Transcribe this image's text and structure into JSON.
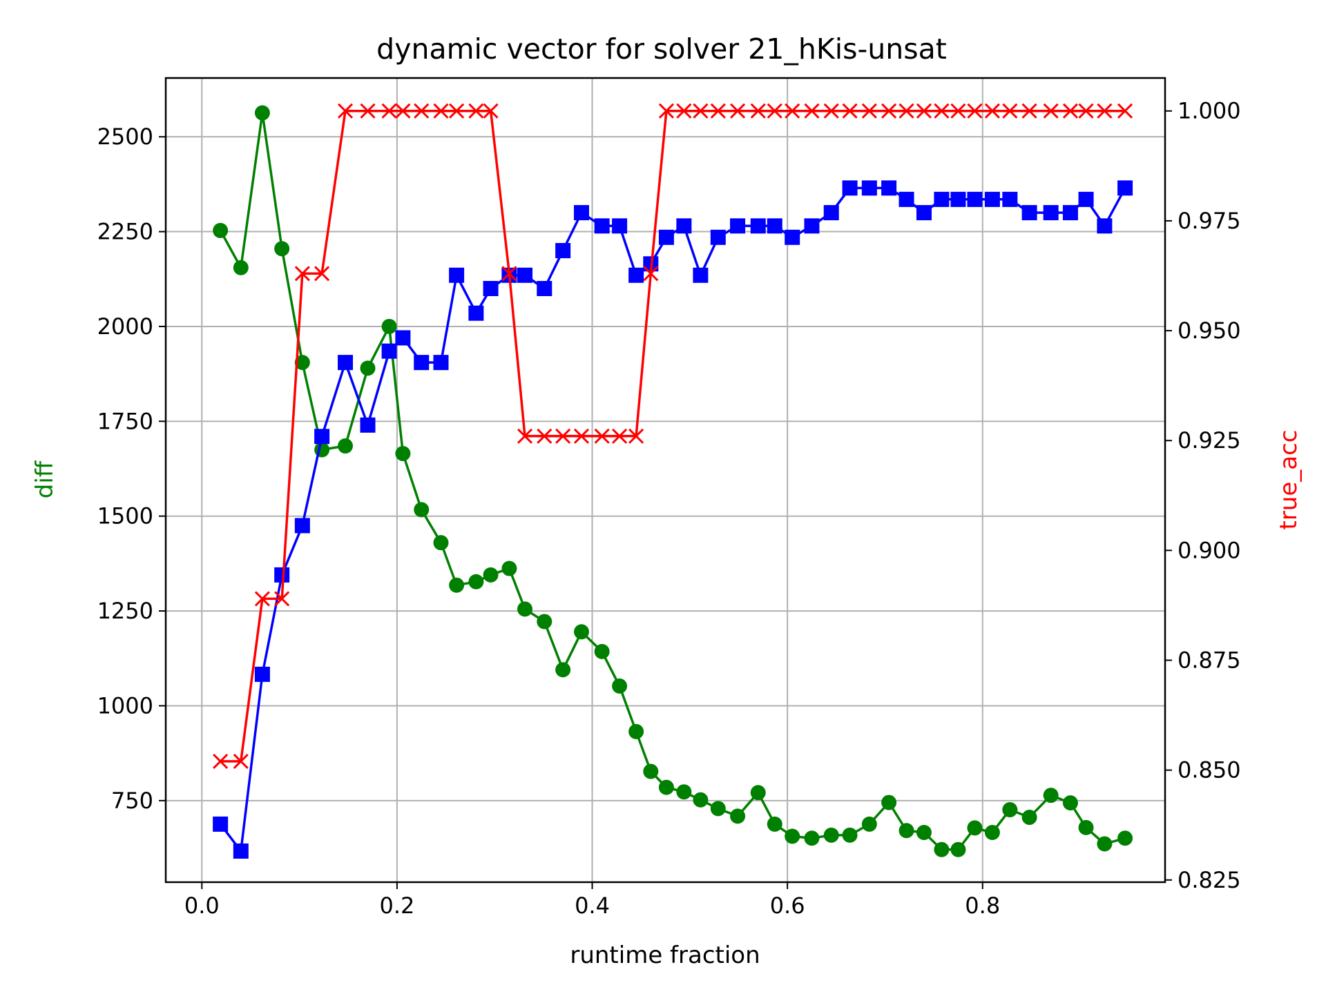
{
  "chart_data": {
    "type": "line",
    "title": "dynamic vector for solver 21_hKis-unsat",
    "xlabel": "runtime fraction",
    "ylabel": "diff",
    "ylabel_right": "true_acc",
    "xlim": [
      -0.037,
      0.987
    ],
    "ylim": [
      535,
      2655
    ],
    "ylim_right": [
      0.8245,
      1.0075
    ],
    "xticks": [
      0.0,
      0.2,
      0.4,
      0.6,
      0.8
    ],
    "xtick_labels": [
      "0.0",
      "0.2",
      "0.4",
      "0.6",
      "0.8"
    ],
    "yticks": [
      750,
      1000,
      1250,
      1500,
      1750,
      2000,
      2250,
      2500
    ],
    "ytick_labels": [
      "750",
      "1000",
      "1250",
      "1500",
      "1750",
      "2000",
      "2250",
      "2500"
    ],
    "yticks_right": [
      0.825,
      0.85,
      0.875,
      0.9,
      0.925,
      0.95,
      0.975,
      1.0
    ],
    "ytick_labels_right": [
      "0.825",
      "0.850",
      "0.875",
      "0.900",
      "0.925",
      "0.950",
      "0.975",
      "1.000"
    ],
    "grid": true,
    "x": [
      0.019,
      0.04,
      0.062,
      0.082,
      0.103,
      0.123,
      0.147,
      0.17,
      0.192,
      0.206,
      0.225,
      0.245,
      0.261,
      0.281,
      0.296,
      0.315,
      0.331,
      0.351,
      0.37,
      0.389,
      0.41,
      0.428,
      0.445,
      0.46,
      0.476,
      0.494,
      0.511,
      0.529,
      0.549,
      0.57,
      0.587,
      0.605,
      0.625,
      0.645,
      0.664,
      0.684,
      0.704,
      0.722,
      0.74,
      0.758,
      0.775,
      0.792,
      0.81,
      0.828,
      0.848,
      0.87,
      0.89,
      0.906,
      0.925,
      0.946
    ],
    "series": [
      {
        "name": "diff",
        "axis": "left",
        "color": "#008000",
        "marker": "circle",
        "values": [
          2253,
          2155,
          2563,
          2205,
          1905,
          1675,
          1685,
          1890,
          2000,
          1665,
          1517,
          1430,
          1318,
          1327,
          1345,
          1362,
          1255,
          1222,
          1095,
          1195,
          1143,
          1052,
          932,
          827,
          785,
          773,
          752,
          729,
          709,
          771,
          688,
          656,
          651,
          659,
          659,
          688,
          745,
          671,
          666,
          621,
          621,
          678,
          666,
          726,
          706,
          764,
          744,
          679,
          636,
          651
        ]
      },
      {
        "name": "blue",
        "axis": "left",
        "color": "#0000ff",
        "marker": "square",
        "values": [
          688,
          617,
          1083,
          1345,
          1475,
          1710,
          1905,
          1740,
          1935,
          1970,
          1905,
          1905,
          2135,
          2035,
          2100,
          2135,
          2135,
          2100,
          2200,
          2300,
          2265,
          2265,
          2135,
          2165,
          2235,
          2265,
          2135,
          2235,
          2265,
          2265,
          2265,
          2235,
          2265,
          2300,
          2365,
          2365,
          2365,
          2335,
          2300,
          2335,
          2335,
          2335,
          2335,
          2335,
          2300,
          2300,
          2300,
          2335,
          2265,
          2365
        ]
      },
      {
        "name": "true_acc",
        "axis": "right",
        "color": "#ff0000",
        "marker": "x",
        "values": [
          0.852,
          0.852,
          0.889,
          0.889,
          0.963,
          0.963,
          1.0,
          1.0,
          1.0,
          1.0,
          1.0,
          1.0,
          1.0,
          1.0,
          1.0,
          0.963,
          0.926,
          0.926,
          0.926,
          0.926,
          0.926,
          0.926,
          0.926,
          0.963,
          1.0,
          1.0,
          1.0,
          1.0,
          1.0,
          1.0,
          1.0,
          1.0,
          1.0,
          1.0,
          1.0,
          1.0,
          1.0,
          1.0,
          1.0,
          1.0,
          1.0,
          1.0,
          1.0,
          1.0,
          1.0,
          1.0,
          1.0,
          1.0,
          1.0,
          1.0
        ]
      }
    ]
  }
}
